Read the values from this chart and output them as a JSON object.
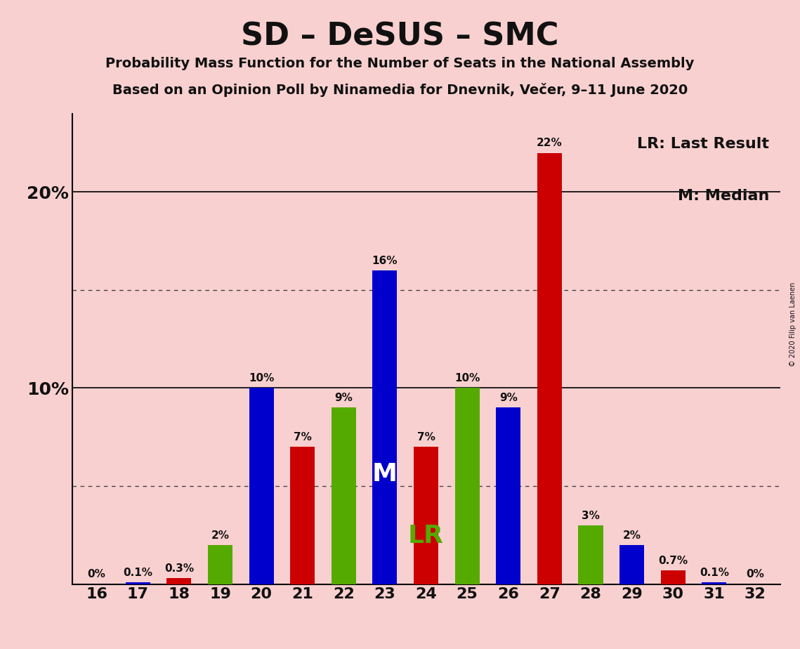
{
  "title": "SD – DeSUS – SMC",
  "subtitle1": "Probability Mass Function for the Number of Seats in the National Assembly",
  "subtitle2": "Based on an Opinion Poll by Ninamedia for Dnevnik, Večer, 9–11 June 2020",
  "copyright": "© 2020 Filip van Laenen",
  "legend_lr": "LR: Last Result",
  "legend_m": "M: Median",
  "background_color": "#f9d0d0",
  "seats": [
    16,
    17,
    18,
    19,
    20,
    21,
    22,
    23,
    24,
    25,
    26,
    27,
    28,
    29,
    30,
    31,
    32
  ],
  "values": [
    0.0,
    0.1,
    0.3,
    2.0,
    10.0,
    7.0,
    9.0,
    16.0,
    7.0,
    10.0,
    9.0,
    22.0,
    3.0,
    2.0,
    0.7,
    0.1,
    0.0
  ],
  "colors": [
    "#0000cc",
    "#0000cc",
    "#cc0000",
    "#55aa00",
    "#0000cc",
    "#cc0000",
    "#55aa00",
    "#0000cc",
    "#cc0000",
    "#55aa00",
    "#0000cc",
    "#cc0000",
    "#55aa00",
    "#0000cc",
    "#cc0000",
    "#0000cc",
    "#55aa00"
  ],
  "label_colors": [
    "#111111",
    "#111111",
    "#111111",
    "#111111",
    "#111111",
    "#111111",
    "#111111",
    "#111111",
    "#111111",
    "#111111",
    "#111111",
    "#111111",
    "#111111",
    "#111111",
    "#111111",
    "#111111",
    "#111111"
  ],
  "median_idx": 7,
  "lr_idx": 8,
  "median_label_color": "white",
  "lr_label_color": "#55aa00",
  "solid_lines": [
    10,
    20
  ],
  "dotted_lines": [
    5,
    15
  ],
  "ytick_positions": [
    10,
    20
  ],
  "ytick_labels": [
    "10%",
    "20%"
  ],
  "ylim": [
    0,
    24
  ],
  "bar_width": 0.6
}
